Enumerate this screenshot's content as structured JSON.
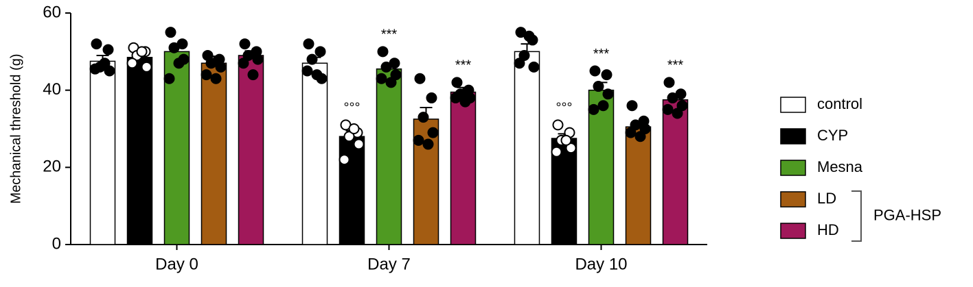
{
  "chart_data": {
    "type": "bar",
    "ylabel": "Mechanical threshold (g)",
    "categories": [
      "Day 0",
      "Day 7",
      "Day 10"
    ],
    "ylim": [
      0,
      60
    ],
    "yticks": [
      0,
      20,
      40,
      60
    ],
    "grid": false,
    "legend_position": "right",
    "legend_group": {
      "label": "PGA-HSP",
      "series": [
        3,
        4
      ]
    },
    "series": [
      {
        "name": "control",
        "color": "#ffffff",
        "point_fill": "#000000",
        "values": [
          47.5,
          47,
          50
        ],
        "errors": [
          1.5,
          1.5,
          2
        ],
        "points": [
          [
            52,
            50.5,
            46,
            45,
            45.5,
            47
          ],
          [
            52,
            50,
            48,
            43,
            45,
            44
          ],
          [
            55,
            53,
            49,
            46,
            47,
            54
          ]
        ],
        "sig": [
          null,
          null,
          null
        ]
      },
      {
        "name": "CYP",
        "color": "#000000",
        "point_fill": "#ffffff",
        "values": [
          48.5,
          28,
          27.5
        ],
        "errors": [
          1.5,
          1.5,
          1.2
        ],
        "points": [
          [
            51,
            50,
            49,
            46,
            47,
            50
          ],
          [
            31,
            29,
            28,
            26,
            22,
            30
          ],
          [
            31,
            29,
            27,
            25,
            24,
            27
          ]
        ],
        "sig": [
          null,
          "°°°",
          "°°°"
        ]
      },
      {
        "name": "Mesna",
        "color": "#4f9a22",
        "point_fill": "#000000",
        "values": [
          50,
          45.5,
          40
        ],
        "errors": [
          1.8,
          1.5,
          2
        ],
        "points": [
          [
            55,
            52,
            51,
            48,
            43,
            47
          ],
          [
            50,
            47,
            46,
            44,
            43,
            42
          ],
          [
            45,
            44,
            41,
            39,
            35,
            36
          ]
        ],
        "sig": [
          null,
          "***",
          "***"
        ]
      },
      {
        "name": "LD",
        "color": "#a35c12",
        "point_fill": "#000000",
        "values": [
          47,
          32.5,
          30.5
        ],
        "errors": [
          1.8,
          3,
          1.2
        ],
        "points": [
          [
            49,
            48,
            47,
            46,
            44,
            43
          ],
          [
            43,
            38,
            33,
            29,
            27,
            26
          ],
          [
            36,
            32,
            31,
            30,
            29,
            28
          ]
        ],
        "sig": [
          null,
          null,
          null
        ]
      },
      {
        "name": "HD",
        "color": "#a0185a",
        "point_fill": "#000000",
        "values": [
          49,
          39.5,
          37.5
        ],
        "errors": [
          1.2,
          1.2,
          1.5
        ],
        "points": [
          [
            52,
            50,
            49,
            48,
            47,
            44
          ],
          [
            42,
            40,
            39,
            38,
            38,
            37
          ],
          [
            42,
            39,
            38,
            36,
            35,
            34
          ]
        ],
        "sig": [
          null,
          "***",
          "***"
        ]
      }
    ]
  }
}
